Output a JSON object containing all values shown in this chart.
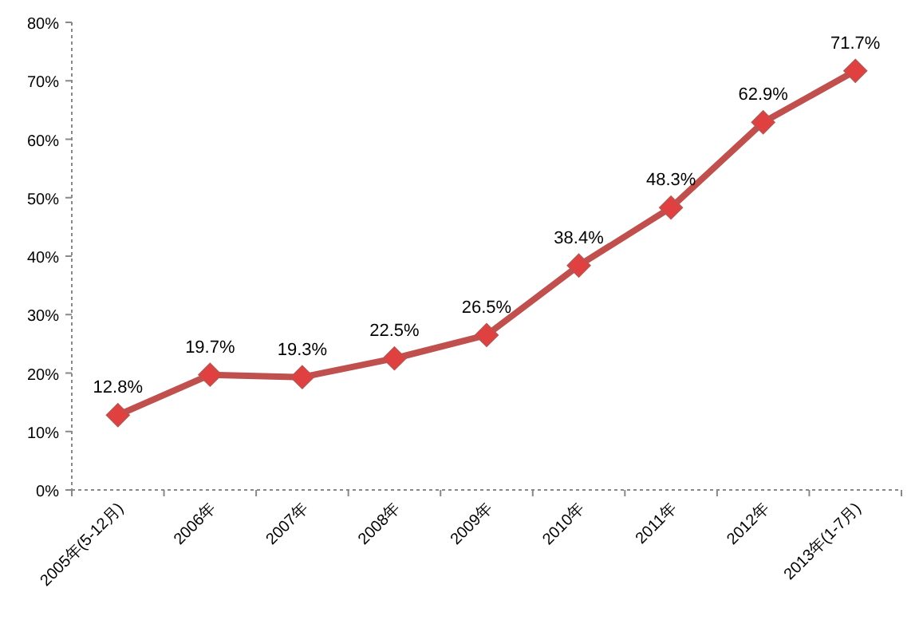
{
  "chart_data": {
    "type": "line",
    "categories": [
      "2005年(5-12月)",
      "2006年",
      "2007年",
      "2008年",
      "2009年",
      "2010年",
      "2011年",
      "2012年",
      "2013年(1-7月)"
    ],
    "series": [
      {
        "color": "#c0504d",
        "values": [
          12.8,
          19.7,
          19.3,
          22.5,
          26.5,
          38.4,
          48.3,
          62.9,
          71.7
        ],
        "value_labels": [
          "12.8%",
          "19.7%",
          "19.3%",
          "22.5%",
          "26.5%",
          "38.4%",
          "48.3%",
          "62.9%",
          "71.7%"
        ]
      }
    ],
    "ylim": [
      0,
      80
    ],
    "yticks": [
      {
        "value": 0,
        "label": "0%"
      },
      {
        "value": 10,
        "label": "10%"
      },
      {
        "value": 20,
        "label": "20%"
      },
      {
        "value": 30,
        "label": "30%"
      },
      {
        "value": 40,
        "label": "40%"
      },
      {
        "value": 50,
        "label": "50%"
      },
      {
        "value": 60,
        "label": "60%"
      },
      {
        "value": 70,
        "label": "70%"
      },
      {
        "value": 80,
        "label": "80%"
      }
    ],
    "marker": "diamond",
    "line_style": "solid",
    "grid": false
  }
}
